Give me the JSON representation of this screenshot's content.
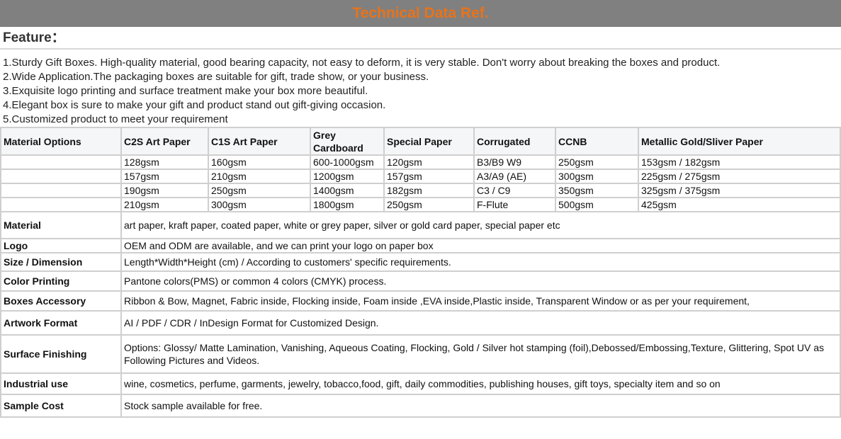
{
  "banner": {
    "title": "Technical Data Ref."
  },
  "feature": {
    "heading": "Feature：",
    "items": [
      "1.Sturdy Gift Boxes. High-quality material, good bearing capacity, not easy to deform, it is very stable. Don't worry about breaking the boxes and product.",
      "2.Wide Application.The packaging boxes are suitable for gift, trade show, or your business.",
      "3.Exquisite logo printing and surface treatment make your box more beautiful.",
      "4.Elegant box is sure to make your gift and product stand out gift-giving occasion.",
      "5.Customized product to meet your requirement"
    ]
  },
  "materials": {
    "headers": [
      "Material Options",
      "C2S Art Paper",
      "C1S Art Paper",
      "Grey Cardboard",
      "Special Paper",
      "Corrugated",
      "CCNB",
      "Metallic Gold/Sliver Paper"
    ],
    "rows": [
      [
        "",
        "128gsm",
        "160gsm",
        "600-1000gsm",
        "120gsm",
        "B3/B9 W9",
        "250gsm",
        "153gsm / 182gsm"
      ],
      [
        "",
        "157gsm",
        "210gsm",
        "1200gsm",
        "157gsm",
        "A3/A9 (AE)",
        "300gsm",
        "225gsm / 275gsm"
      ],
      [
        "",
        "190gsm",
        "250gsm",
        "1400gsm",
        "182gsm",
        "C3 / C9",
        "350gsm",
        "325gsm / 375gsm"
      ],
      [
        "",
        "210gsm",
        "300gsm",
        "1800gsm",
        "250gsm",
        "F-Flute",
        "500gsm",
        "425gsm"
      ]
    ]
  },
  "specs": [
    {
      "label": "Material",
      "value": "art paper, kraft paper, coated paper, white or grey paper, silver or gold card paper, special paper etc"
    },
    {
      "label": "Logo",
      "value": "OEM and ODM are available, and we can print your logo on paper box"
    },
    {
      "label": "Size / Dimension",
      "value": "Length*Width*Height (cm) / According to customers' specific requirements."
    },
    {
      "label": "Color Printing",
      "value": "Pantone colors(PMS) or common 4 colors (CMYK) process."
    },
    {
      "label": "Boxes Accessory",
      "value": "Ribbon & Bow, Magnet, Fabric inside, Flocking inside, Foam inside ,EVA inside,Plastic inside, Transparent Window or as per your requirement,"
    },
    {
      "label": "Artwork Format",
      "value": "AI / PDF / CDR / InDesign Format for Customized Design."
    },
    {
      "label": "Surface Finishing",
      "value": "Options: Glossy/ Matte Lamination, Vanishing, Aqueous Coating, Flocking, Gold / Silver hot stamping (foil),Debossed/Embossing,Texture, Glittering, Spot UV as Following Pictures and Videos."
    },
    {
      "label": "Industrial use",
      "value": "wine, cosmetics, perfume, garments, jewelry, tobacco,food, gift, daily commodities, publishing houses, gift toys, specialty item and so on"
    },
    {
      "label": "Sample Cost",
      "value": "Stock sample available for free."
    }
  ]
}
